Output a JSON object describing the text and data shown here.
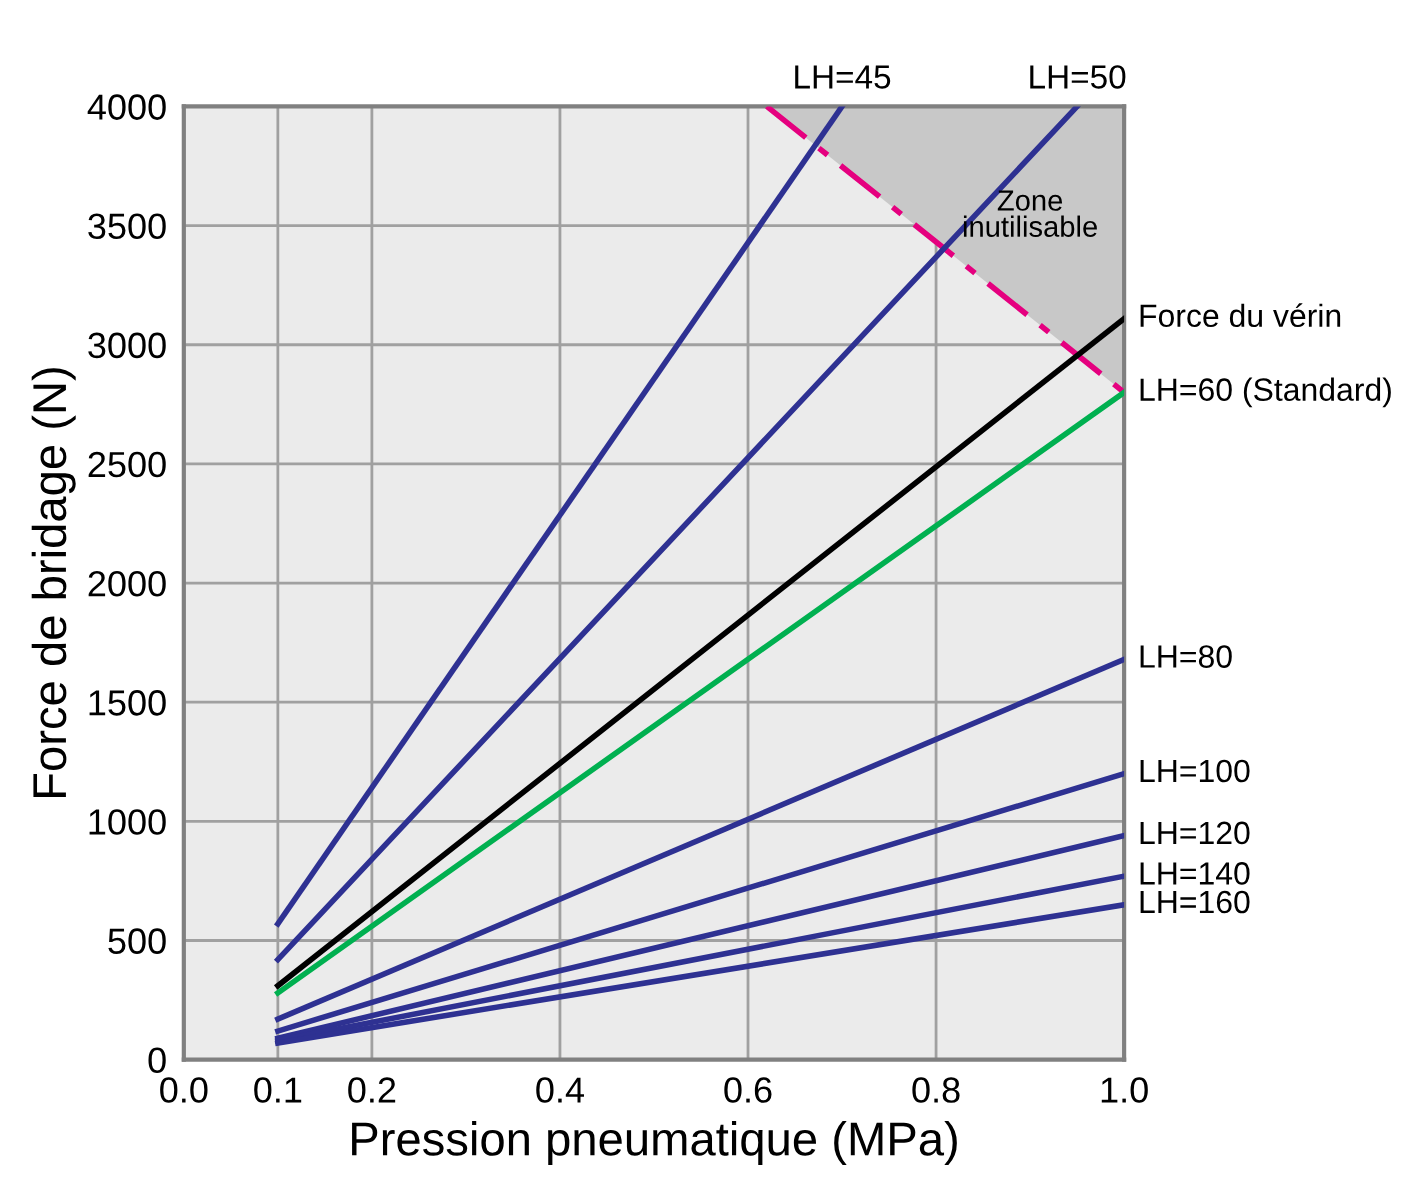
{
  "chart_data": {
    "type": "line",
    "xlabel": "Pression pneumatique (MPa)",
    "ylabel": "Force de bridage (N)",
    "xlim": [
      0,
      1
    ],
    "ylim": [
      0,
      4000
    ],
    "xticks": [
      {
        "value": 0,
        "label": "0.0"
      },
      0.1,
      0.2,
      0.4,
      0.6,
      0.8,
      {
        "value": 1,
        "label": "1.0"
      }
    ],
    "yticks": [
      0,
      500,
      1000,
      1500,
      2000,
      2500,
      3000,
      3500,
      4000
    ],
    "grid": true,
    "legend": false,
    "marker": "none",
    "annotations": [
      "Zone\ninutilisable"
    ],
    "series": [
      {
        "color": "#e5007f",
        "line_style": "dashed",
        "x": [
          0.62,
          1.0
        ],
        "values": [
          4000,
          2800
        ],
        "lower": [
          4000,
          2800
        ],
        "upper": [
          4000,
          4000
        ]
      },
      {
        "name": "LH=45",
        "color": "#2e3192",
        "x": [
          0.1,
          0.7
        ],
        "values": [
          570,
          4000
        ]
      },
      {
        "name": "LH=50",
        "color": "#2e3192",
        "x": [
          0.1,
          0.95
        ],
        "values": [
          420,
          4000
        ]
      },
      {
        "name": "Force du vérin",
        "color": "#000000",
        "x": [
          0.1,
          1.0
        ],
        "values": [
          310,
          3110
        ]
      },
      {
        "name": "LH=60 (Standard)",
        "color": "#00b050",
        "x": [
          0.1,
          1.0
        ],
        "values": [
          280,
          2800
        ]
      },
      {
        "name": "LH=80",
        "color": "#2e3192",
        "x": [
          0.1,
          1.0
        ],
        "values": [
          170,
          1680
        ]
      },
      {
        "name": "LH=100",
        "color": "#2e3192",
        "x": [
          0.1,
          1.0
        ],
        "values": [
          120,
          1200
        ]
      },
      {
        "name": "LH=120",
        "color": "#2e3192",
        "x": [
          0.1,
          1.0
        ],
        "values": [
          90,
          940
        ]
      },
      {
        "name": "LH=140",
        "color": "#2e3192",
        "x": [
          0.1,
          1.0
        ],
        "values": [
          80,
          770
        ]
      },
      {
        "name": "LH=160",
        "color": "#2e3192",
        "x": [
          0.1,
          1.0
        ],
        "values": [
          70,
          650
        ]
      }
    ]
  }
}
